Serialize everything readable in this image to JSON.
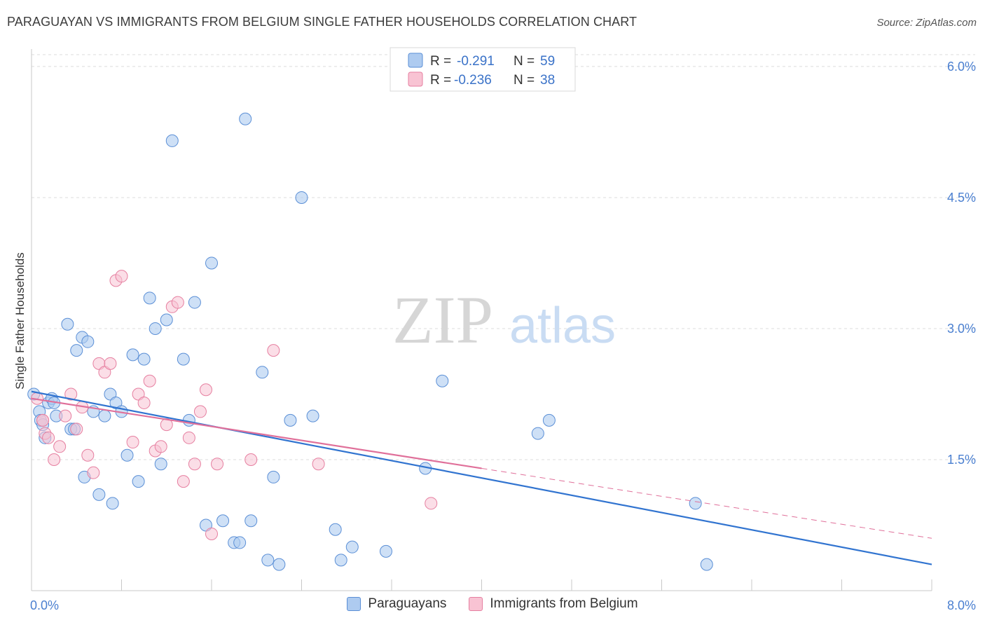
{
  "header": {
    "title": "PARAGUAYAN VS IMMIGRANTS FROM BELGIUM SINGLE FATHER HOUSEHOLDS CORRELATION CHART",
    "source": "Source: ZipAtlas.com"
  },
  "watermark": {
    "zip": "ZIP",
    "atlas": "atlas"
  },
  "colors": {
    "blue_fill": "#aecbf0",
    "blue_stroke": "#5b8fd6",
    "blue_line": "#3174d0",
    "pink_fill": "#f8c3d3",
    "pink_stroke": "#e67fa0",
    "pink_line": "#e0709a",
    "axis_label": "#4a7fd0"
  },
  "chart_data": {
    "type": "scatter",
    "ylabel": "Single Father Households",
    "xlim": [
      0,
      8
    ],
    "ylim": [
      0,
      6.2
    ],
    "x_tick_labels": [
      "0.0%",
      "8.0%"
    ],
    "y_ticks": [
      1.5,
      3.0,
      4.5,
      6.0
    ],
    "y_tick_labels": [
      "1.5%",
      "3.0%",
      "4.5%",
      "6.0%"
    ],
    "grid": true,
    "legend_stats": [
      {
        "r_label": "R =",
        "r_value": "-0.291",
        "n_label": "N =",
        "n_value": "59"
      },
      {
        "r_label": "R =",
        "r_value": "-0.236",
        "n_label": "N =",
        "n_value": "38"
      }
    ],
    "series": [
      {
        "name": "Paraguayans",
        "trend": {
          "x": [
            0.0,
            8.0
          ],
          "y": [
            2.28,
            0.3
          ]
        },
        "points": [
          [
            0.02,
            2.25
          ],
          [
            0.07,
            2.05
          ],
          [
            0.08,
            1.95
          ],
          [
            0.1,
            1.9
          ],
          [
            0.12,
            1.75
          ],
          [
            0.15,
            2.15
          ],
          [
            0.18,
            2.2
          ],
          [
            0.2,
            2.15
          ],
          [
            0.22,
            2.0
          ],
          [
            0.32,
            3.05
          ],
          [
            0.35,
            1.85
          ],
          [
            0.38,
            1.85
          ],
          [
            0.4,
            2.75
          ],
          [
            0.45,
            2.9
          ],
          [
            0.47,
            1.3
          ],
          [
            0.5,
            2.85
          ],
          [
            0.55,
            2.05
          ],
          [
            0.6,
            1.1
          ],
          [
            0.65,
            2.0
          ],
          [
            0.7,
            2.25
          ],
          [
            0.72,
            1.0
          ],
          [
            0.75,
            2.15
          ],
          [
            0.8,
            2.05
          ],
          [
            0.85,
            1.55
          ],
          [
            0.9,
            2.7
          ],
          [
            0.95,
            1.25
          ],
          [
            1.0,
            2.65
          ],
          [
            1.05,
            3.35
          ],
          [
            1.1,
            3.0
          ],
          [
            1.15,
            1.45
          ],
          [
            1.2,
            3.1
          ],
          [
            1.25,
            5.15
          ],
          [
            1.35,
            2.65
          ],
          [
            1.4,
            1.95
          ],
          [
            1.45,
            3.3
          ],
          [
            1.55,
            0.75
          ],
          [
            1.6,
            3.75
          ],
          [
            1.7,
            0.8
          ],
          [
            1.8,
            0.55
          ],
          [
            1.85,
            0.55
          ],
          [
            1.9,
            5.4
          ],
          [
            1.95,
            0.8
          ],
          [
            2.05,
            2.5
          ],
          [
            2.1,
            0.35
          ],
          [
            2.15,
            1.3
          ],
          [
            2.2,
            0.3
          ],
          [
            2.3,
            1.95
          ],
          [
            2.4,
            4.5
          ],
          [
            2.5,
            2.0
          ],
          [
            2.7,
            0.7
          ],
          [
            2.75,
            0.35
          ],
          [
            2.85,
            0.5
          ],
          [
            3.15,
            0.45
          ],
          [
            3.5,
            1.4
          ],
          [
            3.65,
            2.4
          ],
          [
            4.5,
            1.8
          ],
          [
            4.6,
            1.95
          ],
          [
            5.9,
            1.0
          ],
          [
            6.0,
            0.3
          ]
        ]
      },
      {
        "name": "Immigrants from Belgium",
        "trend": {
          "x": [
            0.0,
            4.0
          ],
          "y": [
            2.2,
            1.4
          ]
        },
        "trend_extension": {
          "x": [
            4.0,
            8.0
          ],
          "y": [
            1.4,
            0.6
          ]
        },
        "points": [
          [
            0.05,
            2.2
          ],
          [
            0.1,
            1.95
          ],
          [
            0.12,
            1.8
          ],
          [
            0.15,
            1.75
          ],
          [
            0.2,
            1.5
          ],
          [
            0.25,
            1.65
          ],
          [
            0.3,
            2.0
          ],
          [
            0.35,
            2.25
          ],
          [
            0.4,
            1.85
          ],
          [
            0.45,
            2.1
          ],
          [
            0.5,
            1.55
          ],
          [
            0.55,
            1.35
          ],
          [
            0.6,
            2.6
          ],
          [
            0.65,
            2.5
          ],
          [
            0.7,
            2.6
          ],
          [
            0.75,
            3.55
          ],
          [
            0.8,
            3.6
          ],
          [
            0.9,
            1.7
          ],
          [
            0.95,
            2.25
          ],
          [
            1.0,
            2.15
          ],
          [
            1.05,
            2.4
          ],
          [
            1.1,
            1.6
          ],
          [
            1.15,
            1.65
          ],
          [
            1.2,
            1.9
          ],
          [
            1.25,
            3.25
          ],
          [
            1.3,
            3.3
          ],
          [
            1.35,
            1.25
          ],
          [
            1.4,
            1.75
          ],
          [
            1.45,
            1.45
          ],
          [
            1.5,
            2.05
          ],
          [
            1.55,
            2.3
          ],
          [
            1.6,
            0.65
          ],
          [
            1.65,
            1.45
          ],
          [
            1.95,
            1.5
          ],
          [
            2.15,
            2.75
          ],
          [
            2.55,
            1.45
          ],
          [
            3.55,
            1.0
          ],
          [
            0.1,
            1.95
          ]
        ]
      }
    ]
  }
}
